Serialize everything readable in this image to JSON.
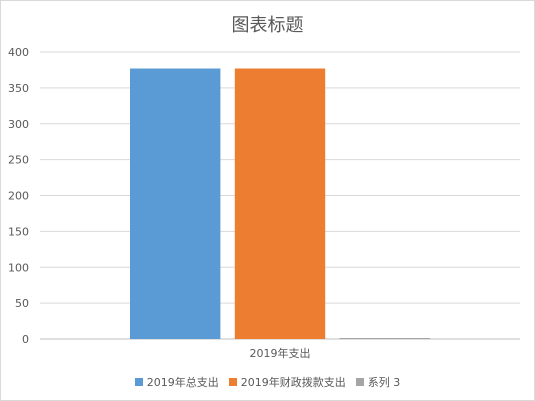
{
  "chart_data": {
    "type": "bar",
    "title": "图表标题",
    "categories": [
      "2019年支出"
    ],
    "series": [
      {
        "name": "2019年总支出",
        "values": [
          377
        ],
        "color": "#5b9bd5"
      },
      {
        "name": "2019年财政拨款支出",
        "values": [
          377
        ],
        "color": "#ed7d31"
      },
      {
        "name": "系列 3",
        "values": [
          1
        ],
        "color": "#a5a5a5"
      }
    ],
    "xlabel": "",
    "ylabel": "",
    "ylim": [
      0,
      400
    ],
    "yticks": [
      0,
      50,
      100,
      150,
      200,
      250,
      300,
      350,
      400
    ],
    "grid": true,
    "legend_position": "bottom"
  }
}
